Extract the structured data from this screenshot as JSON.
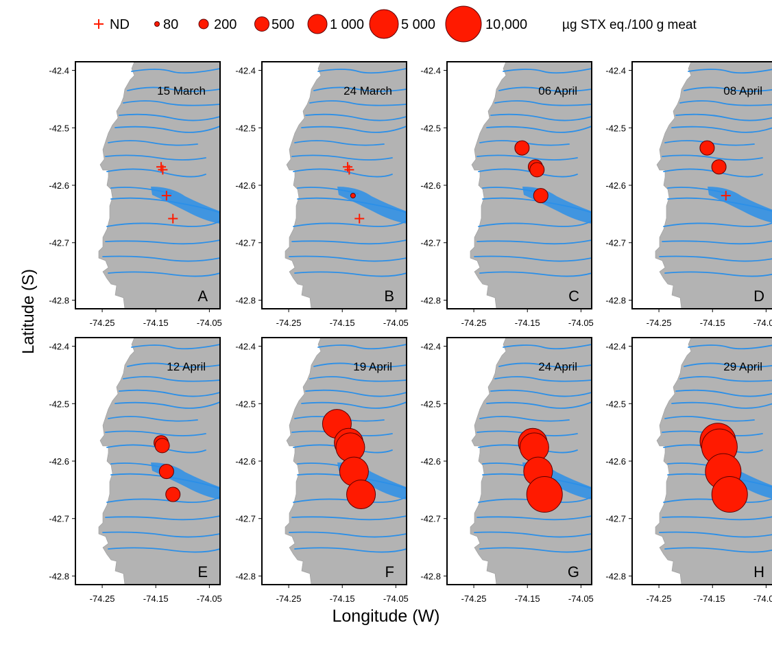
{
  "legend": {
    "nd_label": "ND",
    "size_labels": [
      "80",
      "200",
      "500",
      "1 000",
      "5 000",
      "10,000"
    ],
    "unit": "µg STX eq./100 g meat"
  },
  "axes": {
    "ylabel": "Latitude (S)",
    "xlabel": "Longitude (W)",
    "lat_ticks": [
      "-42.4",
      "-42.5",
      "-42.6",
      "-42.7",
      "-42.8"
    ],
    "lon_ticks": [
      "-74.25",
      "-74.15",
      "-74.05"
    ]
  },
  "colors": {
    "bubble": "#ff1a00",
    "bubble_edge": "#5a0000",
    "land": "#b3b3b3",
    "water": "#2b8fe8",
    "marker_nd": "#ff1a00"
  },
  "chart_data": {
    "type": "scatter",
    "description_of_encoding": "Bubble size proportional to toxin concentration; + marks ND",
    "xlim": [
      -74.3,
      -74.03
    ],
    "ylim": [
      -42.815,
      -42.385
    ],
    "panels": [
      {
        "letter": "A",
        "date": "15 March",
        "points": [
          {
            "x": -74.14,
            "y": -42.568,
            "v": "ND"
          },
          {
            "x": -74.137,
            "y": -42.573,
            "v": "ND"
          },
          {
            "x": -74.13,
            "y": -42.618,
            "v": "ND"
          },
          {
            "x": -74.118,
            "y": -42.658,
            "v": "ND"
          }
        ]
      },
      {
        "letter": "B",
        "date": "24 March",
        "points": [
          {
            "x": -74.14,
            "y": -42.568,
            "v": "ND"
          },
          {
            "x": -74.137,
            "y": -42.573,
            "v": "ND"
          },
          {
            "x": -74.13,
            "y": -42.618,
            "v": 80
          },
          {
            "x": -74.118,
            "y": -42.658,
            "v": "ND"
          }
        ]
      },
      {
        "letter": "C",
        "date": "06 April",
        "points": [
          {
            "x": -74.16,
            "y": -42.535,
            "v": 500
          },
          {
            "x": -74.135,
            "y": -42.568,
            "v": 500
          },
          {
            "x": -74.132,
            "y": -42.573,
            "v": 500
          },
          {
            "x": -74.125,
            "y": -42.618,
            "v": 500
          }
        ]
      },
      {
        "letter": "D",
        "date": "08 April",
        "points": [
          {
            "x": -74.16,
            "y": -42.535,
            "v": 500
          },
          {
            "x": -74.138,
            "y": -42.568,
            "v": 500
          },
          {
            "x": -74.125,
            "y": -42.618,
            "v": "ND"
          }
        ]
      },
      {
        "letter": "E",
        "date": "12 April",
        "points": [
          {
            "x": -74.14,
            "y": -42.568,
            "v": 500
          },
          {
            "x": -74.138,
            "y": -42.573,
            "v": 500
          },
          {
            "x": -74.13,
            "y": -42.618,
            "v": 500
          },
          {
            "x": -74.118,
            "y": -42.658,
            "v": 500
          }
        ]
      },
      {
        "letter": "F",
        "date": "19 April",
        "points": [
          {
            "x": -74.16,
            "y": -42.535,
            "v": 5000
          },
          {
            "x": -74.138,
            "y": -42.568,
            "v": 5000
          },
          {
            "x": -74.135,
            "y": -42.576,
            "v": 5000
          },
          {
            "x": -74.128,
            "y": -42.618,
            "v": 5000
          },
          {
            "x": -74.115,
            "y": -42.658,
            "v": 5000
          }
        ]
      },
      {
        "letter": "G",
        "date": "24 April",
        "points": [
          {
            "x": -74.14,
            "y": -42.568,
            "v": 5000
          },
          {
            "x": -74.137,
            "y": -42.576,
            "v": 5000
          },
          {
            "x": -74.13,
            "y": -42.618,
            "v": 5000
          },
          {
            "x": -74.118,
            "y": -42.658,
            "v": 10000
          }
        ]
      },
      {
        "letter": "H",
        "date": "29 April",
        "points": [
          {
            "x": -74.14,
            "y": -42.565,
            "v": 10000
          },
          {
            "x": -74.137,
            "y": -42.575,
            "v": 10000
          },
          {
            "x": -74.13,
            "y": -42.618,
            "v": 10000
          },
          {
            "x": -74.118,
            "y": -42.658,
            "v": 10000
          }
        ]
      }
    ]
  }
}
